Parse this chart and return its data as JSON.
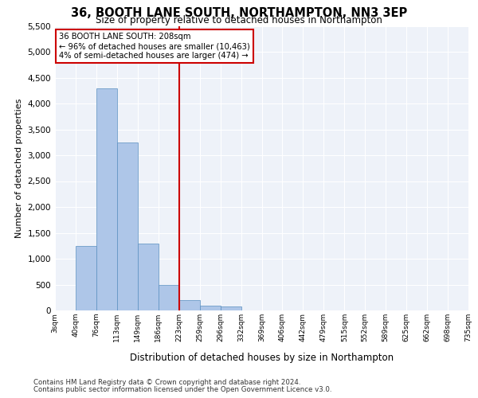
{
  "title": "36, BOOTH LANE SOUTH, NORTHAMPTON, NN3 3EP",
  "subtitle": "Size of property relative to detached houses in Northampton",
  "xlabel": "Distribution of detached houses by size in Northampton",
  "ylabel": "Number of detached properties",
  "property_label": "36 BOOTH LANE SOUTH: 208sqm",
  "pct_smaller": 96,
  "count_smaller": 10463,
  "pct_larger": 4,
  "count_larger": 474,
  "bin_labels": [
    "3sqm",
    "40sqm",
    "76sqm",
    "113sqm",
    "149sqm",
    "186sqm",
    "223sqm",
    "259sqm",
    "296sqm",
    "332sqm",
    "369sqm",
    "406sqm",
    "442sqm",
    "479sqm",
    "515sqm",
    "552sqm",
    "589sqm",
    "625sqm",
    "662sqm",
    "698sqm",
    "735sqm"
  ],
  "bar_values": [
    0,
    1250,
    4300,
    3250,
    1300,
    500,
    200,
    100,
    70,
    0,
    0,
    0,
    0,
    0,
    0,
    0,
    0,
    0,
    0,
    0,
    0
  ],
  "bar_color": "#aec6e8",
  "bar_edge_color": "#5a8fc0",
  "vline_x": 6.0,
  "vline_color": "#cc0000",
  "annotation_box_color": "#cc0000",
  "ylim": [
    0,
    5500
  ],
  "yticks": [
    0,
    500,
    1000,
    1500,
    2000,
    2500,
    3000,
    3500,
    4000,
    4500,
    5000,
    5500
  ],
  "bg_color": "#eef2f9",
  "footer_line1": "Contains HM Land Registry data © Crown copyright and database right 2024.",
  "footer_line2": "Contains public sector information licensed under the Open Government Licence v3.0."
}
